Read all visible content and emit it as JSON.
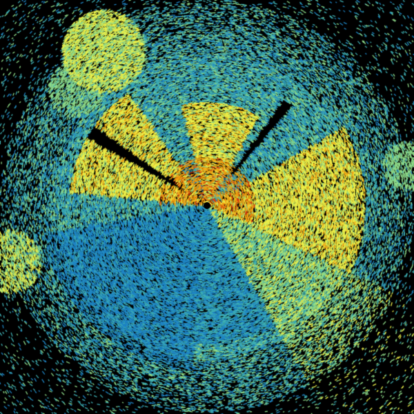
{
  "image": {
    "kind": "radar-sweep",
    "colors": {
      "background": "#000000",
      "blue": "#1f86c6",
      "teal": "#3fb0b4",
      "green": "#8fdc8a",
      "yellow": "#eef24a",
      "orange": "#f0a010",
      "red": "#d03010"
    }
  }
}
